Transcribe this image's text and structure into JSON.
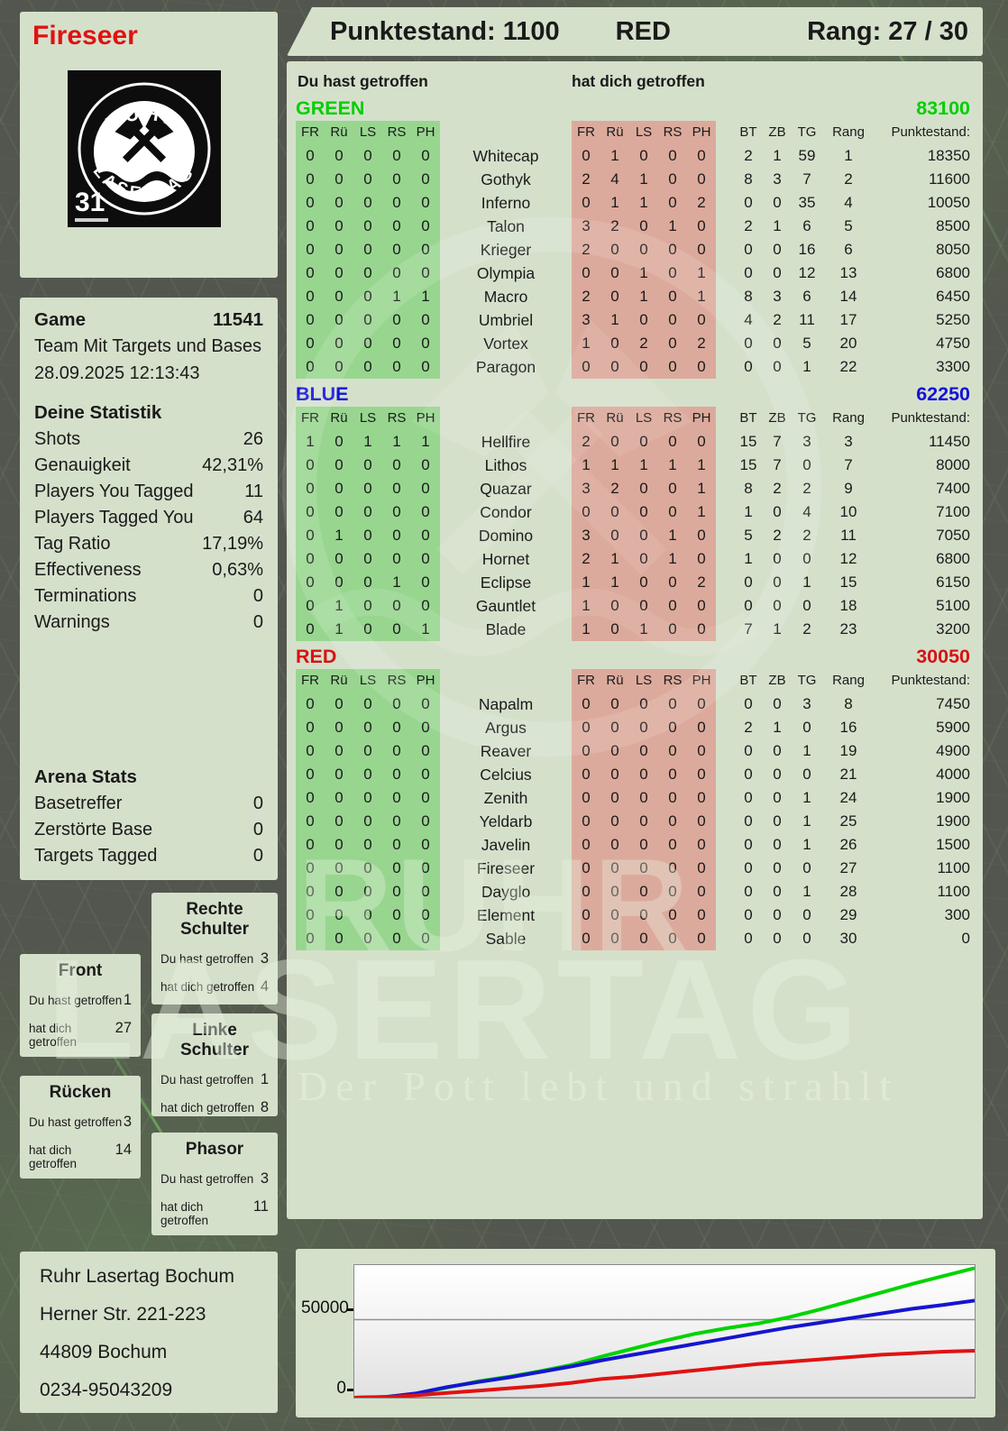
{
  "header": {
    "player": "Fireseer",
    "points_label": "Punktestand: 1100",
    "team": "RED",
    "rank_label": "Rang: 27 / 30"
  },
  "logo": {
    "arc_top": "RUHR",
    "arc_bottom": "LASERTAG",
    "number": "31"
  },
  "hit_labels": {
    "you": "Du hast getroffen",
    "them": "hat dich getroffen"
  },
  "game": {
    "label": "Game",
    "id": "11541",
    "mode": "Team Mit Targets und Bases",
    "datetime": "28.09.2025 12:13:43"
  },
  "stats": {
    "title": "Deine Statistik",
    "rows": [
      {
        "label": "Shots",
        "value": "26"
      },
      {
        "label": "Genauigkeit",
        "value": "42,31%"
      },
      {
        "label": "Players You Tagged",
        "value": "11"
      },
      {
        "label": "Players Tagged You",
        "value": "64"
      },
      {
        "label": "Tag Ratio",
        "value": "17,19%"
      },
      {
        "label": "Effectiveness",
        "value": "0,63%"
      },
      {
        "label": "Terminations",
        "value": "0"
      },
      {
        "label": "Warnings",
        "value": "0"
      }
    ]
  },
  "arena": {
    "title": "Arena Stats",
    "rows": [
      {
        "label": "Basetreffer",
        "value": "0"
      },
      {
        "label": "Zerstörte Base",
        "value": "0"
      },
      {
        "label": "Targets Tagged",
        "value": "0"
      }
    ]
  },
  "columns": {
    "left": [
      "FR",
      "Rü",
      "LS",
      "RS",
      "PH"
    ],
    "right": [
      "FR",
      "Rü",
      "LS",
      "RS",
      "PH"
    ],
    "stats": [
      "BT",
      "ZB",
      "TG",
      "Rang"
    ],
    "points": "Punktestand:"
  },
  "teams": [
    {
      "name": "GREEN",
      "color": "#00cf00",
      "score": "83100",
      "players": [
        {
          "name": "Whitecap",
          "you": [
            0,
            0,
            0,
            0,
            0
          ],
          "them": [
            0,
            1,
            0,
            0,
            0
          ],
          "bt": 2,
          "zb": 1,
          "tg": 59,
          "rang": 1,
          "punkte": "18350"
        },
        {
          "name": "Gothyk",
          "you": [
            0,
            0,
            0,
            0,
            0
          ],
          "them": [
            2,
            4,
            1,
            0,
            0
          ],
          "bt": 8,
          "zb": 3,
          "tg": 7,
          "rang": 2,
          "punkte": "11600"
        },
        {
          "name": "Inferno",
          "you": [
            0,
            0,
            0,
            0,
            0
          ],
          "them": [
            0,
            1,
            1,
            0,
            2
          ],
          "bt": 0,
          "zb": 0,
          "tg": 35,
          "rang": 4,
          "punkte": "10050"
        },
        {
          "name": "Talon",
          "you": [
            0,
            0,
            0,
            0,
            0
          ],
          "them": [
            3,
            2,
            0,
            1,
            0
          ],
          "bt": 2,
          "zb": 1,
          "tg": 6,
          "rang": 5,
          "punkte": "8500"
        },
        {
          "name": "Krieger",
          "you": [
            0,
            0,
            0,
            0,
            0
          ],
          "them": [
            2,
            0,
            0,
            0,
            0
          ],
          "bt": 0,
          "zb": 0,
          "tg": 16,
          "rang": 6,
          "punkte": "8050"
        },
        {
          "name": "Olympia",
          "you": [
            0,
            0,
            0,
            0,
            0
          ],
          "them": [
            0,
            0,
            1,
            0,
            1
          ],
          "bt": 0,
          "zb": 0,
          "tg": 12,
          "rang": 13,
          "punkte": "6800"
        },
        {
          "name": "Macro",
          "you": [
            0,
            0,
            0,
            1,
            1
          ],
          "them": [
            2,
            0,
            1,
            0,
            1
          ],
          "bt": 8,
          "zb": 3,
          "tg": 6,
          "rang": 14,
          "punkte": "6450"
        },
        {
          "name": "Umbriel",
          "you": [
            0,
            0,
            0,
            0,
            0
          ],
          "them": [
            3,
            1,
            0,
            0,
            0
          ],
          "bt": 4,
          "zb": 2,
          "tg": 11,
          "rang": 17,
          "punkte": "5250"
        },
        {
          "name": "Vortex",
          "you": [
            0,
            0,
            0,
            0,
            0
          ],
          "them": [
            1,
            0,
            2,
            0,
            2
          ],
          "bt": 0,
          "zb": 0,
          "tg": 5,
          "rang": 20,
          "punkte": "4750"
        },
        {
          "name": "Paragon",
          "you": [
            0,
            0,
            0,
            0,
            0
          ],
          "them": [
            0,
            0,
            0,
            0,
            0
          ],
          "bt": 0,
          "zb": 0,
          "tg": 1,
          "rang": 22,
          "punkte": "3300"
        }
      ]
    },
    {
      "name": "BLUE",
      "color": "#1212d8",
      "score": "62250",
      "players": [
        {
          "name": "Hellfire",
          "you": [
            1,
            0,
            1,
            1,
            1
          ],
          "them": [
            2,
            0,
            0,
            0,
            0
          ],
          "bt": 15,
          "zb": 7,
          "tg": 3,
          "rang": 3,
          "punkte": "11450"
        },
        {
          "name": "Lithos",
          "you": [
            0,
            0,
            0,
            0,
            0
          ],
          "them": [
            1,
            1,
            1,
            1,
            1
          ],
          "bt": 15,
          "zb": 7,
          "tg": 0,
          "rang": 7,
          "punkte": "8000"
        },
        {
          "name": "Quazar",
          "you": [
            0,
            0,
            0,
            0,
            0
          ],
          "them": [
            3,
            2,
            0,
            0,
            1
          ],
          "bt": 8,
          "zb": 2,
          "tg": 2,
          "rang": 9,
          "punkte": "7400"
        },
        {
          "name": "Condor",
          "you": [
            0,
            0,
            0,
            0,
            0
          ],
          "them": [
            0,
            0,
            0,
            0,
            1
          ],
          "bt": 1,
          "zb": 0,
          "tg": 4,
          "rang": 10,
          "punkte": "7100"
        },
        {
          "name": "Domino",
          "you": [
            0,
            1,
            0,
            0,
            0
          ],
          "them": [
            3,
            0,
            0,
            1,
            0
          ],
          "bt": 5,
          "zb": 2,
          "tg": 2,
          "rang": 11,
          "punkte": "7050"
        },
        {
          "name": "Hornet",
          "you": [
            0,
            0,
            0,
            0,
            0
          ],
          "them": [
            2,
            1,
            0,
            1,
            0
          ],
          "bt": 1,
          "zb": 0,
          "tg": 0,
          "rang": 12,
          "punkte": "6800"
        },
        {
          "name": "Eclipse",
          "you": [
            0,
            0,
            0,
            1,
            0
          ],
          "them": [
            1,
            1,
            0,
            0,
            2
          ],
          "bt": 0,
          "zb": 0,
          "tg": 1,
          "rang": 15,
          "punkte": "6150"
        },
        {
          "name": "Gauntlet",
          "you": [
            0,
            1,
            0,
            0,
            0
          ],
          "them": [
            1,
            0,
            0,
            0,
            0
          ],
          "bt": 0,
          "zb": 0,
          "tg": 0,
          "rang": 18,
          "punkte": "5100"
        },
        {
          "name": "Blade",
          "you": [
            0,
            1,
            0,
            0,
            1
          ],
          "them": [
            1,
            0,
            1,
            0,
            0
          ],
          "bt": 7,
          "zb": 1,
          "tg": 2,
          "rang": 23,
          "punkte": "3200"
        }
      ]
    },
    {
      "name": "RED",
      "color": "#d81212",
      "score": "30050",
      "players": [
        {
          "name": "Napalm",
          "you": [
            0,
            0,
            0,
            0,
            0
          ],
          "them": [
            0,
            0,
            0,
            0,
            0
          ],
          "bt": 0,
          "zb": 0,
          "tg": 3,
          "rang": 8,
          "punkte": "7450"
        },
        {
          "name": "Argus",
          "you": [
            0,
            0,
            0,
            0,
            0
          ],
          "them": [
            0,
            0,
            0,
            0,
            0
          ],
          "bt": 2,
          "zb": 1,
          "tg": 0,
          "rang": 16,
          "punkte": "5900"
        },
        {
          "name": "Reaver",
          "you": [
            0,
            0,
            0,
            0,
            0
          ],
          "them": [
            0,
            0,
            0,
            0,
            0
          ],
          "bt": 0,
          "zb": 0,
          "tg": 1,
          "rang": 19,
          "punkte": "4900"
        },
        {
          "name": "Celcius",
          "you": [
            0,
            0,
            0,
            0,
            0
          ],
          "them": [
            0,
            0,
            0,
            0,
            0
          ],
          "bt": 0,
          "zb": 0,
          "tg": 0,
          "rang": 21,
          "punkte": "4000"
        },
        {
          "name": "Zenith",
          "you": [
            0,
            0,
            0,
            0,
            0
          ],
          "them": [
            0,
            0,
            0,
            0,
            0
          ],
          "bt": 0,
          "zb": 0,
          "tg": 1,
          "rang": 24,
          "punkte": "1900"
        },
        {
          "name": "Yeldarb",
          "you": [
            0,
            0,
            0,
            0,
            0
          ],
          "them": [
            0,
            0,
            0,
            0,
            0
          ],
          "bt": 0,
          "zb": 0,
          "tg": 1,
          "rang": 25,
          "punkte": "1900"
        },
        {
          "name": "Javelin",
          "you": [
            0,
            0,
            0,
            0,
            0
          ],
          "them": [
            0,
            0,
            0,
            0,
            0
          ],
          "bt": 0,
          "zb": 0,
          "tg": 1,
          "rang": 26,
          "punkte": "1500"
        },
        {
          "name": "Fireseer",
          "you": [
            0,
            0,
            0,
            0,
            0
          ],
          "them": [
            0,
            0,
            0,
            0,
            0
          ],
          "bt": 0,
          "zb": 0,
          "tg": 0,
          "rang": 27,
          "punkte": "1100"
        },
        {
          "name": "Dayglo",
          "you": [
            0,
            0,
            0,
            0,
            0
          ],
          "them": [
            0,
            0,
            0,
            0,
            0
          ],
          "bt": 0,
          "zb": 0,
          "tg": 1,
          "rang": 28,
          "punkte": "1100"
        },
        {
          "name": "Element",
          "you": [
            0,
            0,
            0,
            0,
            0
          ],
          "them": [
            0,
            0,
            0,
            0,
            0
          ],
          "bt": 0,
          "zb": 0,
          "tg": 0,
          "rang": 29,
          "punkte": "300"
        },
        {
          "name": "Sable",
          "you": [
            0,
            0,
            0,
            0,
            0
          ],
          "them": [
            0,
            0,
            0,
            0,
            0
          ],
          "bt": 0,
          "zb": 0,
          "tg": 0,
          "rang": 30,
          "punkte": "0"
        }
      ]
    }
  ],
  "bodyparts": [
    {
      "title": "Front",
      "you": "1",
      "them": "27"
    },
    {
      "title": "Rücken",
      "you": "3",
      "them": "14"
    },
    {
      "title": "Rechte Schulter",
      "you": "3",
      "them": "4"
    },
    {
      "title": "Linke Schulter",
      "you": "1",
      "them": "8"
    },
    {
      "title": "Phasor",
      "you": "3",
      "them": "11"
    }
  ],
  "address": {
    "lines": [
      "Ruhr Lasertag Bochum",
      "Herner Str. 221-223",
      "44809 Bochum",
      "0234-95043209"
    ]
  },
  "watermark": {
    "line1": "RUHR",
    "line2": "LASERTAG",
    "slogan": "Der Pott lebt und strahlt"
  },
  "chart_data": {
    "type": "line",
    "title": "",
    "xlabel": "",
    "ylabel": "",
    "ylim": [
      0,
      85000
    ],
    "yticks": [
      0,
      50000
    ],
    "ytick_labels": [
      "0",
      "50000"
    ],
    "grid": true,
    "legend": "none",
    "x_unit": "game time (progress 0-1, 21 samples)",
    "x": [
      0,
      0.05,
      0.1,
      0.15,
      0.2,
      0.25,
      0.3,
      0.35,
      0.4,
      0.45,
      0.5,
      0.55,
      0.6,
      0.65,
      0.7,
      0.75,
      0.8,
      0.85,
      0.9,
      0.95,
      1
    ],
    "series": [
      {
        "name": "GREEN",
        "color": "#00d400",
        "values": [
          0,
          500,
          2500,
          6500,
          10500,
          13500,
          17000,
          21000,
          26500,
          31500,
          36500,
          41000,
          44500,
          47500,
          51500,
          56500,
          62000,
          67500,
          73000,
          78000,
          83100
        ]
      },
      {
        "name": "BLUE",
        "color": "#1515d0",
        "values": [
          0,
          400,
          2800,
          6800,
          10000,
          13000,
          16500,
          20000,
          24000,
          27500,
          31000,
          34500,
          38000,
          41500,
          45000,
          48000,
          51000,
          54000,
          57000,
          59500,
          62250
        ]
      },
      {
        "name": "RED",
        "color": "#e01212",
        "values": [
          0,
          300,
          1500,
          3000,
          4500,
          6000,
          7500,
          9500,
          12000,
          13500,
          15500,
          17500,
          19500,
          21500,
          23000,
          24500,
          26000,
          27500,
          28500,
          29500,
          30050
        ]
      }
    ]
  }
}
